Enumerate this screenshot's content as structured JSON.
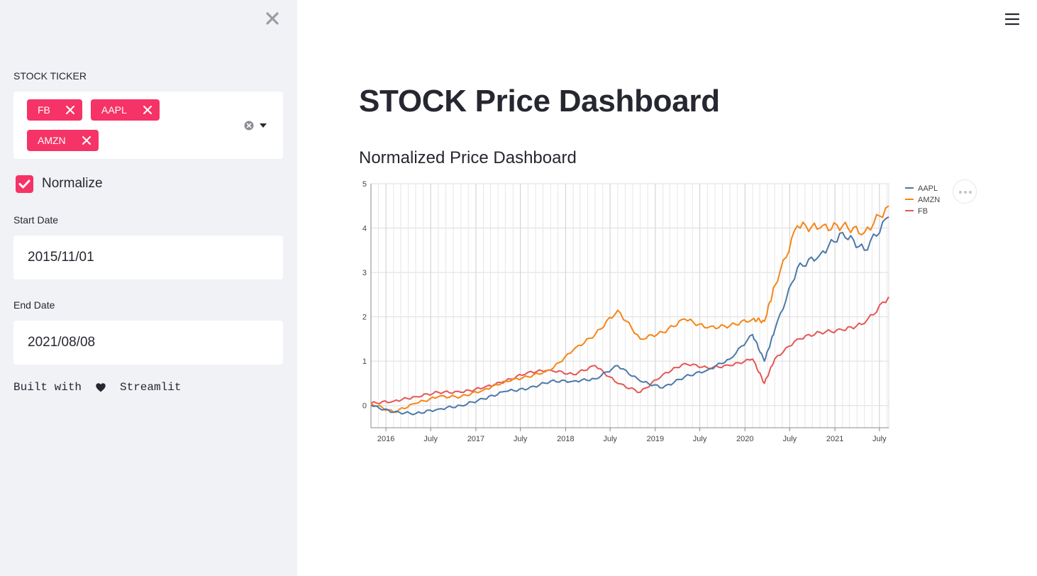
{
  "sidebar": {
    "ticker_label": "STOCK TICKER",
    "tickers": [
      "FB",
      "AAPL",
      "AMZN"
    ],
    "normalize_label": "Normalize",
    "normalize_checked": true,
    "start_label": "Start Date",
    "start_value": "2015/11/01",
    "end_label": "End Date",
    "end_value": "2021/08/08",
    "built_with": "Built with",
    "built_by": "Streamlit"
  },
  "main": {
    "title": "STOCK Price Dashboard",
    "chart_title": "Normalized Price Dashboard"
  },
  "colors": {
    "accent": "#f63366",
    "sidebar_bg": "#f0f2f6",
    "aapl": "#4c78a8",
    "amzn": "#f58518",
    "fb": "#e45756"
  },
  "chart_data": {
    "type": "line",
    "title": "Normalized Price Dashboard",
    "xlabel": "",
    "ylabel": "",
    "ylim": [
      -0.5,
      5
    ],
    "xlim": [
      "2015-11-01",
      "2021-08-08"
    ],
    "grid": true,
    "legend": "top-right",
    "y_ticks": [
      "0",
      "1",
      "2",
      "3",
      "4",
      "5"
    ],
    "x_ticks": [
      {
        "date": "2016-01-01",
        "label": "2016"
      },
      {
        "date": "2016-07-01",
        "label": "July"
      },
      {
        "date": "2017-01-01",
        "label": "2017"
      },
      {
        "date": "2017-07-01",
        "label": "July"
      },
      {
        "date": "2018-01-01",
        "label": "2018"
      },
      {
        "date": "2018-07-01",
        "label": "July"
      },
      {
        "date": "2019-01-01",
        "label": "2019"
      },
      {
        "date": "2019-07-01",
        "label": "July"
      },
      {
        "date": "2020-01-01",
        "label": "2020"
      },
      {
        "date": "2020-07-01",
        "label": "July"
      },
      {
        "date": "2021-01-01",
        "label": "2021"
      },
      {
        "date": "2021-07-01",
        "label": "July"
      }
    ],
    "x": [
      "2015-11-01",
      "2016-02-01",
      "2016-05-01",
      "2016-08-01",
      "2016-11-01",
      "2017-02-01",
      "2017-05-01",
      "2017-08-01",
      "2017-11-01",
      "2018-02-01",
      "2018-05-01",
      "2018-08-01",
      "2018-11-01",
      "2019-02-01",
      "2019-05-01",
      "2019-08-01",
      "2019-11-01",
      "2020-02-01",
      "2020-03-20",
      "2020-05-01",
      "2020-08-01",
      "2020-11-01",
      "2021-02-01",
      "2021-05-01",
      "2021-08-08"
    ],
    "series": [
      {
        "name": "AAPL",
        "values": [
          0.0,
          -0.15,
          -0.18,
          -0.08,
          0.0,
          0.15,
          0.32,
          0.38,
          0.55,
          0.55,
          0.6,
          0.9,
          0.55,
          0.4,
          0.65,
          0.8,
          1.05,
          1.6,
          1.0,
          1.7,
          3.1,
          3.4,
          3.9,
          3.5,
          4.25
        ]
      },
      {
        "name": "AMZN",
        "values": [
          0.05,
          -0.15,
          0.05,
          0.2,
          0.2,
          0.35,
          0.55,
          0.65,
          0.8,
          1.25,
          1.6,
          2.15,
          1.5,
          1.65,
          1.95,
          1.75,
          1.8,
          1.95,
          1.9,
          2.7,
          4.05,
          4.0,
          4.05,
          3.9,
          4.5
        ]
      },
      {
        "name": "FB",
        "values": [
          0.05,
          0.1,
          0.2,
          0.3,
          0.3,
          0.4,
          0.55,
          0.75,
          0.8,
          0.7,
          0.9,
          0.5,
          0.3,
          0.7,
          0.95,
          0.85,
          0.9,
          1.05,
          0.5,
          1.05,
          1.5,
          1.65,
          1.7,
          1.85,
          2.45
        ]
      }
    ]
  }
}
